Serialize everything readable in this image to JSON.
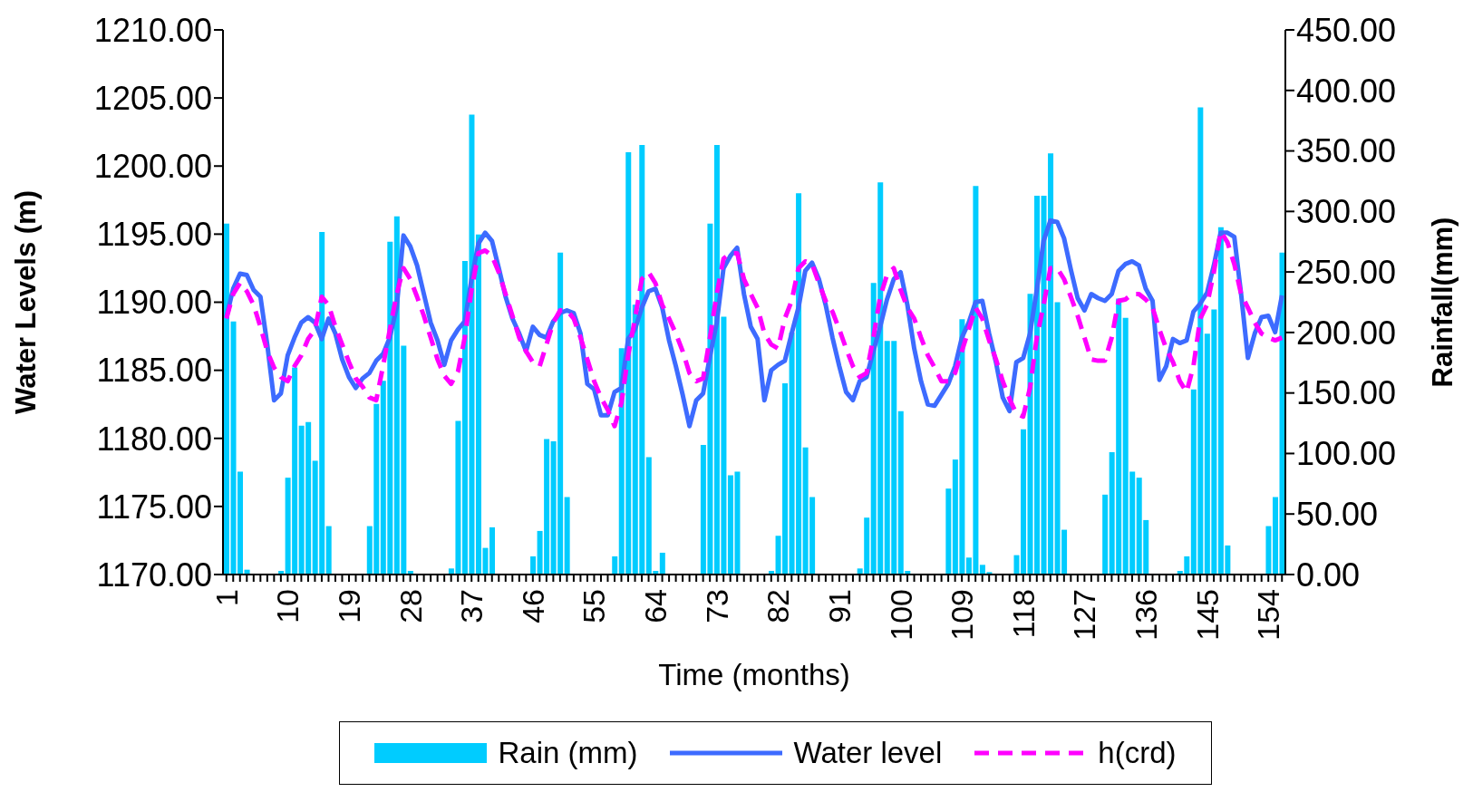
{
  "chart_data": {
    "type": "bar",
    "xlabel": "Time (months)",
    "ylabel": "Water Levels (m)",
    "y2label": "Rainfall(mm)",
    "legend": "bottom",
    "marker": "none",
    "categories": [
      "1",
      null,
      null,
      null,
      null,
      null,
      null,
      null,
      null,
      "10",
      null,
      null,
      null,
      null,
      null,
      null,
      null,
      null,
      "19",
      null,
      null,
      null,
      null,
      null,
      null,
      null,
      null,
      "28",
      null,
      null,
      null,
      null,
      null,
      null,
      null,
      null,
      "37",
      null,
      null,
      null,
      null,
      null,
      null,
      null,
      null,
      "46",
      null,
      null,
      null,
      null,
      null,
      null,
      null,
      null,
      "55",
      null,
      null,
      null,
      null,
      null,
      null,
      null,
      null,
      "64",
      null,
      null,
      null,
      null,
      null,
      null,
      null,
      null,
      "73",
      null,
      null,
      null,
      null,
      null,
      null,
      null,
      null,
      "82",
      null,
      null,
      null,
      null,
      null,
      null,
      null,
      null,
      "91",
      null,
      null,
      null,
      null,
      null,
      null,
      null,
      null,
      "100",
      null,
      null,
      null,
      null,
      null,
      null,
      null,
      null,
      "109",
      null,
      null,
      null,
      null,
      null,
      null,
      null,
      null,
      "118",
      null,
      null,
      null,
      null,
      null,
      null,
      null,
      null,
      "127",
      null,
      null,
      null,
      null,
      null,
      null,
      null,
      null,
      "136",
      null,
      null,
      null,
      null,
      null,
      null,
      null,
      null,
      "145",
      null,
      null,
      null,
      null,
      null,
      null,
      null,
      null,
      "154",
      null,
      null
    ],
    "ylim": [
      1170,
      1210
    ],
    "yticks": [
      {
        "value": 1170,
        "label": "1170.00"
      },
      {
        "value": 1175,
        "label": "1175.00"
      },
      {
        "value": 1180,
        "label": "1180.00"
      },
      {
        "value": 1185,
        "label": "1185.00"
      },
      {
        "value": 1190,
        "label": "1190.00"
      },
      {
        "value": 1195,
        "label": "1195.00"
      },
      {
        "value": 1200,
        "label": "1200.00"
      },
      {
        "value": 1205,
        "label": "1205.00"
      },
      {
        "value": 1210,
        "label": "1210.00"
      }
    ],
    "y2lim": [
      0,
      450
    ],
    "y2ticks": [
      {
        "value": 0,
        "label": "0.00"
      },
      {
        "value": 50,
        "label": "50.00"
      },
      {
        "value": 100,
        "label": "100.00"
      },
      {
        "value": 150,
        "label": "150.00"
      },
      {
        "value": 200,
        "label": "200.00"
      },
      {
        "value": 250,
        "label": "250.00"
      },
      {
        "value": 300,
        "label": "300.00"
      },
      {
        "value": 350,
        "label": "350.00"
      },
      {
        "value": 400,
        "label": "400.00"
      },
      {
        "value": 450,
        "label": "450.00"
      }
    ],
    "series": [
      {
        "name": "Rain (mm)",
        "axis": "y2",
        "color": "#00ccff",
        "values": [
          290,
          209,
          85,
          4,
          0,
          0,
          0,
          0,
          3,
          80,
          171,
          123,
          126,
          94,
          283,
          40,
          0,
          0,
          0,
          0,
          0,
          40,
          141,
          160,
          275,
          296,
          189,
          3,
          0,
          0,
          0,
          0,
          0,
          5,
          127,
          259,
          380,
          281,
          22,
          39,
          0,
          0,
          0,
          0,
          0,
          15,
          36,
          112,
          110,
          266,
          64,
          0,
          0,
          0,
          0,
          0,
          0,
          15,
          187,
          349,
          223,
          355,
          97,
          3,
          18,
          0,
          0,
          0,
          0,
          0,
          107,
          290,
          355,
          213,
          82,
          85,
          0,
          0,
          0,
          0,
          3,
          32,
          158,
          200,
          315,
          105,
          64,
          0,
          0,
          0,
          0,
          0,
          0,
          5,
          47,
          241,
          324,
          193,
          193,
          135,
          3,
          0,
          0,
          0,
          0,
          0,
          71,
          95,
          211,
          14,
          321,
          8,
          2,
          0,
          0,
          0,
          16,
          120,
          232,
          313,
          313,
          348,
          225,
          37,
          0,
          0,
          0,
          0,
          0,
          66,
          101,
          228,
          212,
          85,
          80,
          45,
          0,
          0,
          0,
          0,
          3,
          15,
          153,
          386,
          199,
          219,
          287,
          24,
          0,
          0,
          0,
          0,
          0,
          40,
          64,
          266
        ]
      },
      {
        "name": "Water level",
        "type": "line",
        "color": "#3d6bff",
        "values": [
          1188.9,
          1191.0,
          1192.1,
          1192.0,
          1190.9,
          1190.4,
          1186.9,
          1182.8,
          1183.3,
          1186.1,
          1187.4,
          1188.5,
          1188.9,
          1188.5,
          1187.3,
          1188.8,
          1187.7,
          1185.8,
          1184.5,
          1183.7,
          1184.4,
          1184.8,
          1185.7,
          1186.2,
          1187.4,
          1189.6,
          1194.9,
          1194.1,
          1192.7,
          1190.6,
          1188.5,
          1187.2,
          1185.4,
          1187.2,
          1188.0,
          1188.6,
          1191.7,
          1194.3,
          1195.1,
          1194.5,
          1192.5,
          1190.4,
          1188.8,
          1187.7,
          1186.4,
          1188.2,
          1187.6,
          1187.4,
          1188.6,
          1189.2,
          1189.4,
          1189.2,
          1187.7,
          1184.0,
          1183.6,
          1181.7,
          1181.7,
          1183.4,
          1183.7,
          1187.3,
          1188.0,
          1189.6,
          1190.8,
          1191.0,
          1189.6,
          1187.2,
          1185.3,
          1183.2,
          1180.9,
          1182.8,
          1183.3,
          1186.0,
          1188.5,
          1192.5,
          1193.4,
          1194.0,
          1190.6,
          1188.2,
          1187.3,
          1182.8,
          1185.0,
          1185.4,
          1185.7,
          1187.7,
          1189.6,
          1192.3,
          1192.9,
          1191.7,
          1189.8,
          1187.4,
          1185.3,
          1183.4,
          1182.8,
          1184.2,
          1184.5,
          1186.4,
          1188.2,
          1190.2,
          1191.7,
          1192.2,
          1189.8,
          1186.6,
          1184.2,
          1182.5,
          1182.4,
          1183.2,
          1184.0,
          1185.3,
          1187.4,
          1188.5,
          1190.0,
          1190.1,
          1187.7,
          1185.6,
          1183.0,
          1182.0,
          1185.6,
          1185.9,
          1187.7,
          1190.9,
          1194.5,
          1196.0,
          1195.9,
          1194.7,
          1192.4,
          1190.3,
          1189.4,
          1190.6,
          1190.3,
          1190.1,
          1190.6,
          1192.3,
          1192.8,
          1193.0,
          1192.7,
          1191.0,
          1190.1,
          1184.3,
          1185.3,
          1187.3,
          1187.0,
          1187.2,
          1189.3,
          1189.9,
          1190.7,
          1192.7,
          1195.1,
          1195.1,
          1194.8,
          1190.6,
          1185.9,
          1187.7,
          1188.9,
          1189.0,
          1187.8,
          1190.5
        ]
      },
      {
        "name": "h(crd)",
        "type": "line",
        "line_style": "dashed",
        "color": "#ff00ff",
        "values": [
          1188.8,
          1190.6,
          1191.4,
          1190.8,
          1189.8,
          1188.2,
          1186.4,
          1185.2,
          1184.5,
          1184.2,
          1185.3,
          1186.1,
          1187.3,
          1188.0,
          1190.4,
          1189.8,
          1188.2,
          1186.9,
          1185.6,
          1184.4,
          1183.8,
          1183.0,
          1182.8,
          1185.3,
          1188.0,
          1190.6,
          1192.5,
          1191.7,
          1190.4,
          1189.0,
          1187.4,
          1185.8,
          1184.6,
          1184.0,
          1184.9,
          1187.4,
          1190.9,
          1193.6,
          1193.8,
          1193.4,
          1192.2,
          1190.6,
          1189.0,
          1187.4,
          1186.4,
          1185.6,
          1185.3,
          1186.9,
          1188.5,
          1189.4,
          1189.4,
          1188.8,
          1187.4,
          1185.8,
          1184.2,
          1183.0,
          1182.1,
          1180.9,
          1182.6,
          1186.1,
          1188.8,
          1191.7,
          1192.2,
          1191.4,
          1189.8,
          1188.8,
          1187.7,
          1186.4,
          1184.8,
          1184.2,
          1184.4,
          1187.4,
          1190.6,
          1193.2,
          1193.6,
          1193.6,
          1191.7,
          1190.6,
          1189.6,
          1187.7,
          1186.9,
          1186.6,
          1188.8,
          1190.1,
          1192.5,
          1193.0,
          1192.8,
          1191.4,
          1190.1,
          1189.3,
          1188.0,
          1186.6,
          1185.3,
          1184.5,
          1184.8,
          1187.4,
          1190.4,
          1192.0,
          1192.5,
          1190.9,
          1189.6,
          1188.8,
          1187.4,
          1186.1,
          1185.2,
          1184.2,
          1184.2,
          1184.8,
          1186.4,
          1188.0,
          1189.6,
          1188.8,
          1187.2,
          1185.8,
          1184.2,
          1182.9,
          1181.8,
          1181.6,
          1183.7,
          1187.4,
          1189.8,
          1192.5,
          1192.5,
          1191.7,
          1190.4,
          1189.0,
          1187.4,
          1185.8,
          1185.7,
          1185.7,
          1187.4,
          1190.1,
          1190.2,
          1190.6,
          1190.6,
          1190.2,
          1189.6,
          1188.0,
          1186.6,
          1185.6,
          1184.2,
          1183.4,
          1185.3,
          1188.8,
          1189.8,
          1192.2,
          1195.2,
          1194.4,
          1192.8,
          1190.6,
          1189.6,
          1188.5,
          1187.7,
          1187.4,
          1187.2,
          1187.4
        ]
      }
    ]
  }
}
